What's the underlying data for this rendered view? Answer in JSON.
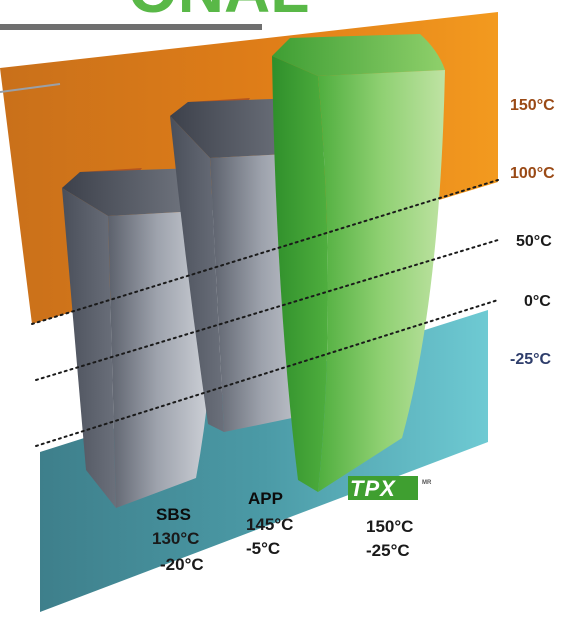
{
  "header": {
    "title_fragment": "ONAL"
  },
  "scale": {
    "labels": [
      {
        "text": "150°C",
        "color": "#9a4a16"
      },
      {
        "text": "100°C",
        "color": "#9a4a16"
      },
      {
        "text": "50°C",
        "color": "#1a1a1a"
      },
      {
        "text": "0°C",
        "color": "#1a1a1a"
      },
      {
        "text": "-25°C",
        "color": "#2e3d6b"
      }
    ]
  },
  "products": [
    {
      "name": "SBS",
      "max": "130°C",
      "min": "-20°C"
    },
    {
      "name": "APP",
      "max": "145°C",
      "min": "-5°C"
    },
    {
      "name": "TPX",
      "logo_mark": "MR",
      "max": "150°C",
      "min": "-25°C"
    }
  ],
  "colors": {
    "title_green": "#59b847",
    "hot_band": "#e07c17",
    "cold_band": "#55b5c1",
    "grey_block": "#8d929d",
    "green_block": "#5cb845",
    "header_rule": "#6f6f6f"
  }
}
